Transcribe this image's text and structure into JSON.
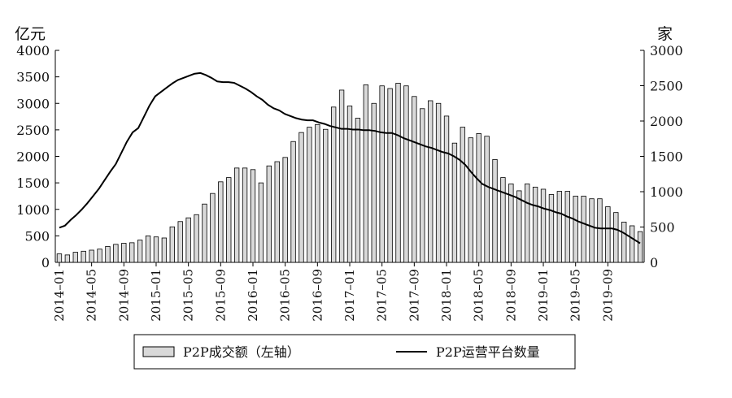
{
  "chart_data": {
    "type": "bar",
    "left_unit": "亿元",
    "right_unit": "家",
    "y_left": {
      "min": 0,
      "max": 4000,
      "ticks": [
        0,
        500,
        1000,
        1500,
        2000,
        2500,
        3000,
        3500,
        4000
      ]
    },
    "y_right": {
      "min": 0,
      "max": 3000,
      "ticks": [
        0,
        500,
        1000,
        1500,
        2000,
        2500,
        3000
      ]
    },
    "x_tick_labels": [
      "2014–01",
      "2014–05",
      "2014–09",
      "2015–01",
      "2015–05",
      "2015–09",
      "2016–01",
      "2016–05",
      "2016–09",
      "2017–01",
      "2017–05",
      "2017–09",
      "2018–01",
      "2018–05",
      "2018–09",
      "2019–01",
      "2019–05",
      "2019–09"
    ],
    "legend_position": "bottom",
    "series": [
      {
        "name": "P2P成交额（左轴）",
        "kind": "bar",
        "axis": "left",
        "color": "#d9d9d9",
        "values": [
          160,
          140,
          190,
          210,
          230,
          250,
          300,
          340,
          360,
          370,
          420,
          500,
          480,
          460,
          670,
          770,
          840,
          900,
          1100,
          1300,
          1520,
          1600,
          1780,
          1780,
          1750,
          1500,
          1820,
          1900,
          1980,
          2280,
          2450,
          2550,
          2600,
          2510,
          2930,
          3250,
          2950,
          2720,
          3350,
          3000,
          3330,
          3280,
          3380,
          3330,
          3130,
          2900,
          3050,
          3000,
          2760,
          2250,
          2550,
          2350,
          2430,
          2380,
          1940,
          1600,
          1480,
          1350,
          1480,
          1420,
          1380,
          1280,
          1340,
          1340,
          1250,
          1250,
          1200,
          1200,
          1050,
          940,
          760,
          690,
          580
        ]
      },
      {
        "name": "P2P运营平台数量",
        "kind": "line",
        "axis": "right",
        "color": "#000000",
        "values": [
          490,
          520,
          600,
          670,
          750,
          840,
          940,
          1040,
          1160,
          1280,
          1390,
          1550,
          1710,
          1840,
          1900,
          2060,
          2220,
          2350,
          2410,
          2470,
          2530,
          2580,
          2610,
          2640,
          2670,
          2680,
          2650,
          2610,
          2560,
          2550,
          2550,
          2540,
          2500,
          2460,
          2410,
          2350,
          2300,
          2230,
          2180,
          2150,
          2100,
          2070,
          2040,
          2020,
          2010,
          2010,
          1980,
          1960,
          1930,
          1910,
          1890,
          1890,
          1880,
          1880,
          1870,
          1870,
          1860,
          1840,
          1830,
          1830,
          1800,
          1760,
          1730,
          1700,
          1670,
          1640,
          1620,
          1590,
          1560,
          1540,
          1500,
          1450,
          1380,
          1280,
          1190,
          1110,
          1070,
          1040,
          1010,
          980,
          950,
          920,
          880,
          840,
          810,
          790,
          760,
          740,
          710,
          690,
          650,
          620,
          580,
          550,
          520,
          490,
          480,
          480,
          480,
          460,
          420,
          370,
          320,
          270
        ]
      }
    ]
  }
}
